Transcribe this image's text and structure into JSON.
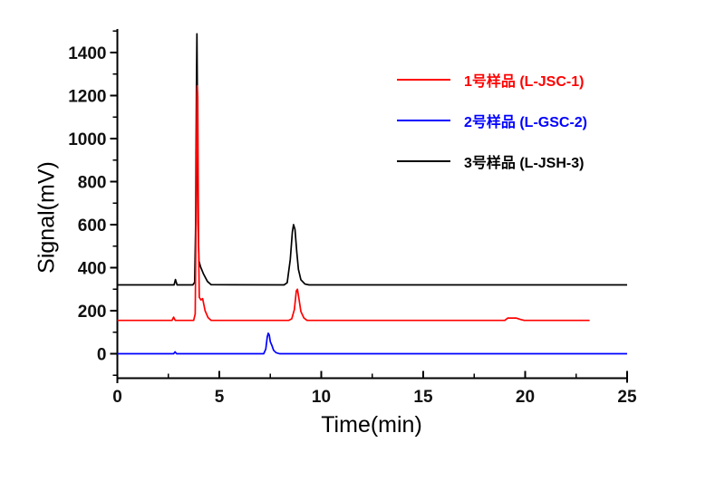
{
  "chart_data": {
    "type": "line",
    "title": "",
    "xlabel": "Time(min)",
    "ylabel": "Signal(mV)",
    "x_range": [
      0,
      25
    ],
    "y_range": [
      -130,
      1510
    ],
    "x_major_ticks": [
      0,
      5,
      10,
      15,
      20,
      25
    ],
    "x_minor_ticks": [
      2.5,
      7.5,
      12.5,
      17.5,
      22.5
    ],
    "y_major_ticks": [
      0,
      200,
      400,
      600,
      800,
      1000,
      1200,
      1400
    ],
    "y_minor_ticks": [
      -100,
      100,
      300,
      500,
      700,
      900,
      1100,
      1300,
      1500
    ],
    "grid": false,
    "legend_position": "top-right",
    "series": [
      {
        "name": "1号样品 (L-JSC-1)",
        "color": "#ff0000",
        "baseline_mV": 155,
        "main_peaks_min": [
          3.9,
          8.8
        ],
        "points": [
          [
            0,
            155
          ],
          [
            2.68,
            155
          ],
          [
            2.76,
            170
          ],
          [
            2.84,
            155
          ],
          [
            3.74,
            155
          ],
          [
            3.82,
            185
          ],
          [
            3.86,
            600
          ],
          [
            3.9,
            1200
          ],
          [
            3.92,
            1245
          ],
          [
            3.94,
            1190
          ],
          [
            3.98,
            520
          ],
          [
            4.02,
            262
          ],
          [
            4.1,
            250
          ],
          [
            4.18,
            256
          ],
          [
            4.3,
            200
          ],
          [
            4.45,
            168
          ],
          [
            4.6,
            155
          ],
          [
            8.4,
            155
          ],
          [
            8.55,
            162
          ],
          [
            8.68,
            205
          ],
          [
            8.78,
            292
          ],
          [
            8.83,
            300
          ],
          [
            8.9,
            258
          ],
          [
            9.0,
            196
          ],
          [
            9.15,
            166
          ],
          [
            9.3,
            155
          ],
          [
            19.0,
            155
          ],
          [
            19.15,
            166
          ],
          [
            19.55,
            166
          ],
          [
            19.78,
            159
          ],
          [
            19.95,
            155
          ],
          [
            23.16,
            155
          ]
        ]
      },
      {
        "name": "2号样品 (L-GSC-2)",
        "color": "#0000ff",
        "baseline_mV": 0,
        "main_peaks_min": [
          7.4
        ],
        "points": [
          [
            0,
            0
          ],
          [
            2.76,
            0
          ],
          [
            2.83,
            9
          ],
          [
            2.9,
            0
          ],
          [
            7.18,
            0
          ],
          [
            7.28,
            22
          ],
          [
            7.35,
            78
          ],
          [
            7.4,
            95
          ],
          [
            7.45,
            87
          ],
          [
            7.5,
            55
          ],
          [
            7.58,
            38
          ],
          [
            7.66,
            16
          ],
          [
            7.78,
            5
          ],
          [
            7.95,
            0
          ],
          [
            25,
            0
          ]
        ]
      },
      {
        "name": "3号样品 (L-JSH-3)",
        "color": "#000000",
        "baseline_mV": 320,
        "main_peaks_min": [
          3.9,
          8.65
        ],
        "points": [
          [
            0,
            320
          ],
          [
            2.78,
            320
          ],
          [
            2.85,
            345
          ],
          [
            2.93,
            320
          ],
          [
            3.7,
            320
          ],
          [
            3.79,
            332
          ],
          [
            3.84,
            600
          ],
          [
            3.88,
            1255
          ],
          [
            3.9,
            1487
          ],
          [
            3.92,
            1255
          ],
          [
            3.96,
            610
          ],
          [
            4.0,
            432
          ],
          [
            4.08,
            404
          ],
          [
            4.22,
            372
          ],
          [
            4.42,
            336
          ],
          [
            4.6,
            321
          ],
          [
            8.18,
            320
          ],
          [
            8.33,
            330
          ],
          [
            8.48,
            438
          ],
          [
            8.58,
            566
          ],
          [
            8.64,
            600
          ],
          [
            8.71,
            578
          ],
          [
            8.8,
            472
          ],
          [
            8.88,
            392
          ],
          [
            9.0,
            344
          ],
          [
            9.2,
            324
          ],
          [
            9.4,
            320
          ],
          [
            25,
            320
          ]
        ]
      }
    ]
  }
}
